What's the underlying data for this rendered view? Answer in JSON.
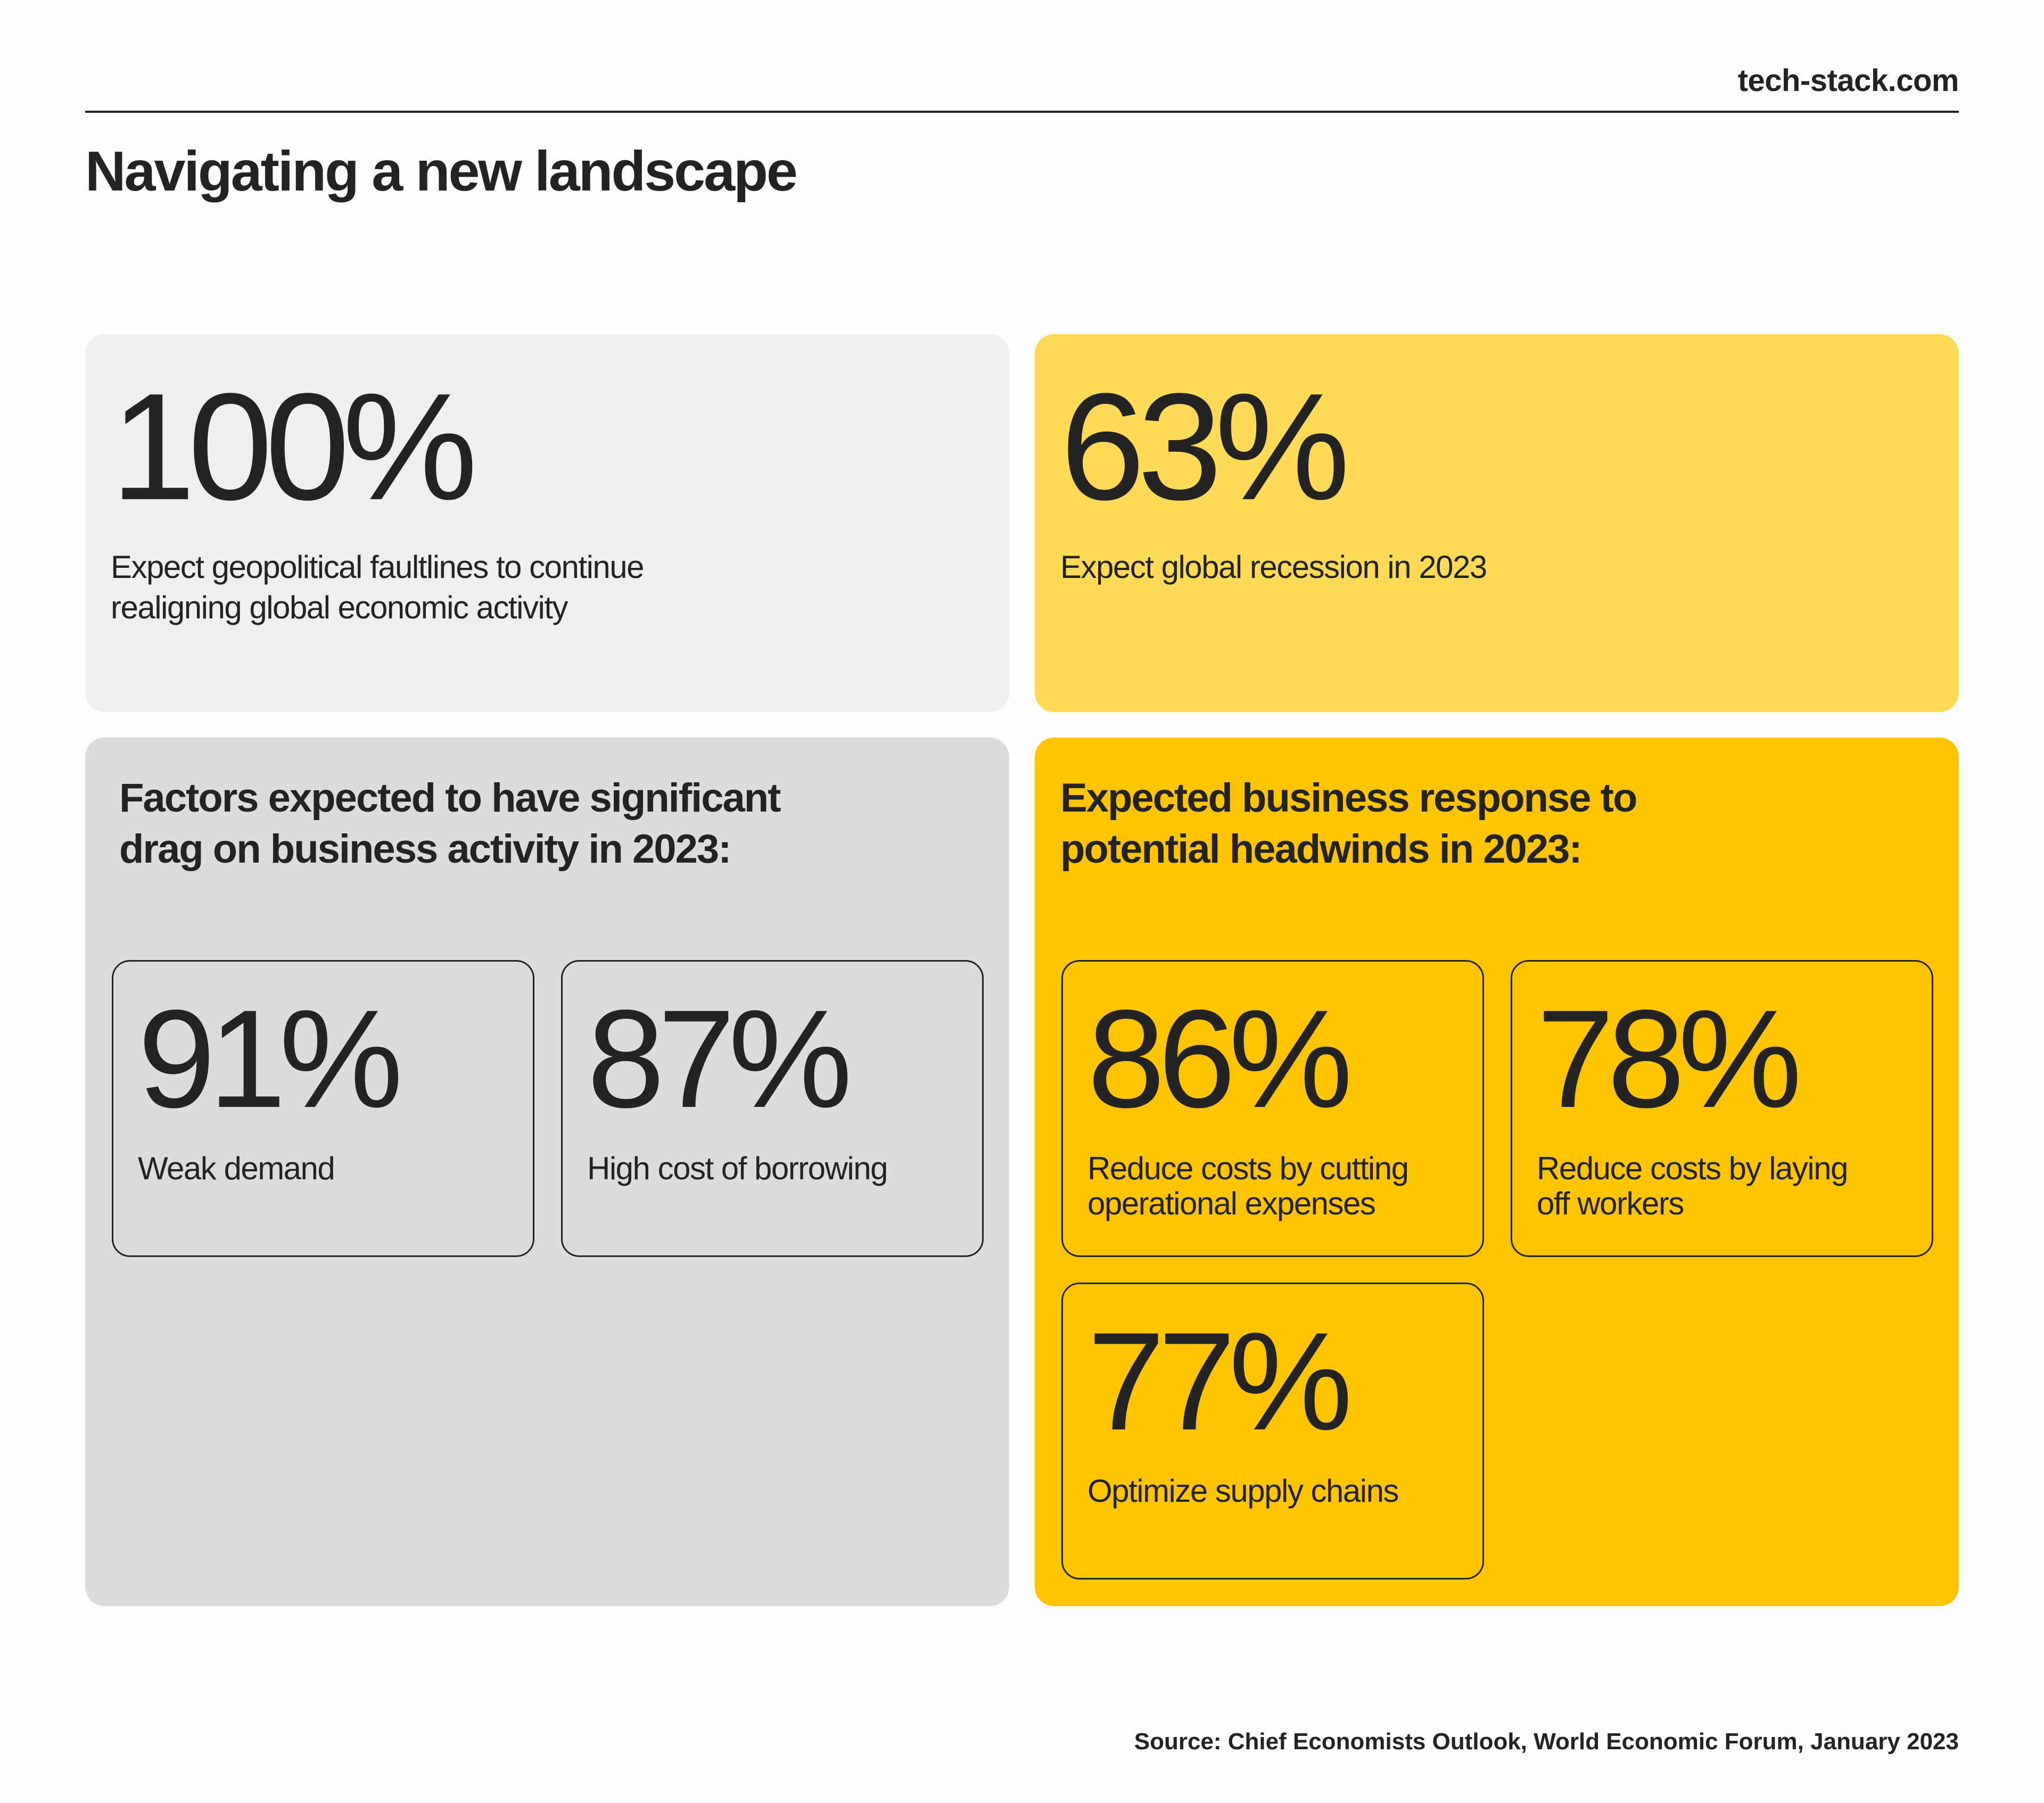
{
  "header": {
    "site": "tech-stack.com",
    "title": "Navigating a new landscape"
  },
  "cards": {
    "geopolitical": {
      "value": "100%",
      "line1": "Expect geopolitical faultlines to continue",
      "line2": "realigning global economic activity"
    },
    "recession": {
      "value": "63%",
      "line1": "Expect global recession in 2023"
    },
    "factors": {
      "heading1": "Factors expected to have significant",
      "heading2": "drag on business activity in 2023:",
      "items": [
        {
          "value": "91%",
          "line1": "Weak demand"
        },
        {
          "value": "87%",
          "line1": "High cost of borrowing"
        }
      ]
    },
    "response": {
      "heading1": "Expected business response to",
      "heading2": "potential headwinds in 2023:",
      "items": [
        {
          "value": "86%",
          "line1": "Reduce costs by cutting",
          "line2": "operational expenses"
        },
        {
          "value": "78%",
          "line1": "Reduce costs by laying",
          "line2": "off workers"
        },
        {
          "value": "77%",
          "line1": "Optimize supply chains"
        }
      ]
    }
  },
  "footer": {
    "source": "Source: Chief Economists Outlook, World Economic Forum, January 2023"
  },
  "colors": {
    "text": "#232323",
    "card_light_gray": "#efefef",
    "card_gray": "#dddcdd",
    "card_light_yellow": "#ffda57",
    "card_yellow": "#fec400"
  }
}
